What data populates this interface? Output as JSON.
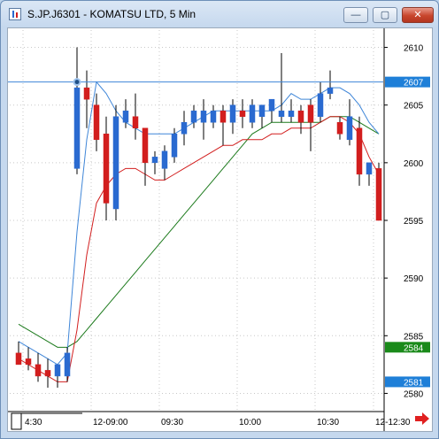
{
  "window": {
    "title": "S.JP.J6301 - KOMATSU LTD, 5 Min",
    "buttons": {
      "minimize": "—",
      "maximize": "▢",
      "close": "✕"
    }
  },
  "chart_data": {
    "type": "candlestick",
    "title": "S.JP.J6301 - KOMATSU LTD, 5 Min",
    "ylim": [
      2578.5,
      2611.5
    ],
    "y_ticks": [
      2580,
      2585,
      2590,
      2595,
      2600,
      2605,
      2610
    ],
    "x_tick_labels": [
      "4:30",
      "12-09:00",
      "09:30",
      "10:00",
      "10:30",
      "12-12:30"
    ],
    "grid": true,
    "colors": {
      "up": "#2a6ad0",
      "down": "#d21e1e",
      "price_line": "#3f86d8",
      "ma_blue": "#3f86d8",
      "ma_red": "#d21e1e",
      "ma_green": "#1c7a1c"
    },
    "horizontal_line": 2607,
    "price_tags": [
      {
        "label": "2607",
        "value": 2607,
        "color": "#1e7fd8"
      },
      {
        "label": "2584",
        "value": 2584,
        "color": "#1a8a1a"
      },
      {
        "label": "2581",
        "value": 2581,
        "color": "#1e7fd8"
      }
    ],
    "candles": [
      {
        "o": 2583.5,
        "h": 2584.5,
        "l": 2582.5,
        "c": 2582.5
      },
      {
        "o": 2583.0,
        "h": 2584.0,
        "l": 2582.0,
        "c": 2582.5
      },
      {
        "o": 2582.5,
        "h": 2583.5,
        "l": 2581.0,
        "c": 2581.5
      },
      {
        "o": 2582.0,
        "h": 2583.0,
        "l": 2580.5,
        "c": 2581.5
      },
      {
        "o": 2581.5,
        "h": 2582.5,
        "l": 2580.5,
        "c": 2582.5
      },
      {
        "o": 2581.5,
        "h": 2584.0,
        "l": 2581.0,
        "c": 2583.5
      },
      {
        "o": 2599.5,
        "h": 2610.0,
        "l": 2599.0,
        "c": 2606.5
      },
      {
        "o": 2606.5,
        "h": 2608.0,
        "l": 2603.0,
        "c": 2605.5
      },
      {
        "o": 2605.0,
        "h": 2606.0,
        "l": 2601.0,
        "c": 2602.0
      },
      {
        "o": 2602.5,
        "h": 2604.0,
        "l": 2595.0,
        "c": 2596.5
      },
      {
        "o": 2596.0,
        "h": 2605.0,
        "l": 2595.0,
        "c": 2604.0
      },
      {
        "o": 2603.5,
        "h": 2605.5,
        "l": 2603.0,
        "c": 2604.5
      },
      {
        "o": 2604.0,
        "h": 2606.0,
        "l": 2602.0,
        "c": 2603.0
      },
      {
        "o": 2603.0,
        "h": 2603.0,
        "l": 2598.0,
        "c": 2600.0
      },
      {
        "o": 2600.0,
        "h": 2601.0,
        "l": 2599.0,
        "c": 2600.5
      },
      {
        "o": 2599.5,
        "h": 2601.5,
        "l": 2598.5,
        "c": 2601.0
      },
      {
        "o": 2600.5,
        "h": 2603.0,
        "l": 2600.0,
        "c": 2602.5
      },
      {
        "o": 2602.5,
        "h": 2604.5,
        "l": 2601.5,
        "c": 2603.5
      },
      {
        "o": 2603.5,
        "h": 2605.0,
        "l": 2603.0,
        "c": 2604.5
      },
      {
        "o": 2603.5,
        "h": 2605.5,
        "l": 2602.0,
        "c": 2604.5
      },
      {
        "o": 2603.5,
        "h": 2605.0,
        "l": 2603.0,
        "c": 2604.5
      },
      {
        "o": 2604.5,
        "h": 2605.0,
        "l": 2601.5,
        "c": 2603.5
      },
      {
        "o": 2603.5,
        "h": 2605.5,
        "l": 2602.5,
        "c": 2605.0
      },
      {
        "o": 2604.5,
        "h": 2605.5,
        "l": 2603.0,
        "c": 2604.0
      },
      {
        "o": 2603.5,
        "h": 2605.5,
        "l": 2603.0,
        "c": 2605.0
      },
      {
        "o": 2604.0,
        "h": 2605.0,
        "l": 2603.0,
        "c": 2605.0
      },
      {
        "o": 2604.5,
        "h": 2605.5,
        "l": 2603.5,
        "c": 2605.5
      },
      {
        "o": 2604.0,
        "h": 2609.5,
        "l": 2603.5,
        "c": 2604.5
      },
      {
        "o": 2604.0,
        "h": 2605.5,
        "l": 2603.5,
        "c": 2604.5
      },
      {
        "o": 2604.5,
        "h": 2605.0,
        "l": 2602.5,
        "c": 2603.5
      },
      {
        "o": 2605.0,
        "h": 2605.5,
        "l": 2601.0,
        "c": 2603.5
      },
      {
        "o": 2604.0,
        "h": 2607.0,
        "l": 2603.5,
        "c": 2606.0
      },
      {
        "o": 2606.0,
        "h": 2608.0,
        "l": 2605.5,
        "c": 2606.5
      },
      {
        "o": 2603.5,
        "h": 2604.0,
        "l": 2602.0,
        "c": 2602.5
      },
      {
        "o": 2602.0,
        "h": 2605.5,
        "l": 2601.5,
        "c": 2604.0
      },
      {
        "o": 2603.0,
        "h": 2604.0,
        "l": 2598.0,
        "c": 2599.0
      },
      {
        "o": 2599.0,
        "h": 2600.0,
        "l": 2598.0,
        "c": 2600.0
      },
      {
        "o": 2599.5,
        "h": 2600.0,
        "l": 2595.0,
        "c": 2595.0
      }
    ],
    "ma_blue": [
      2584.5,
      2584.0,
      2583.5,
      2583.0,
      2582.5,
      2583.5,
      2594.0,
      2602.0,
      2607.0,
      2606.0,
      2604.5,
      2603.5,
      2603.0,
      2602.5,
      2602.5,
      2602.5,
      2602.5,
      2603.0,
      2603.5,
      2604.0,
      2604.5,
      2604.5,
      2604.5,
      2604.5,
      2604.5,
      2604.5,
      2604.5,
      2605.0,
      2606.0,
      2605.5,
      2605.5,
      2606.0,
      2606.5,
      2606.5,
      2606.0,
      2605.0,
      2603.5,
      2602.5
    ],
    "ma_red": [
      2583.0,
      2582.5,
      2582.0,
      2581.5,
      2581.0,
      2581.0,
      2585.5,
      2592.0,
      2596.5,
      2598.0,
      2599.0,
      2599.5,
      2599.5,
      2599.0,
      2598.5,
      2598.5,
      2599.0,
      2599.5,
      2600.0,
      2600.5,
      2601.0,
      2601.5,
      2601.5,
      2602.0,
      2602.0,
      2602.0,
      2602.5,
      2602.5,
      2603.0,
      2603.0,
      2603.0,
      2603.5,
      2604.0,
      2604.0,
      2603.5,
      2602.5,
      2600.5,
      2599.0
    ],
    "ma_green": [
      2586.0,
      2585.5,
      2585.0,
      2584.5,
      2584.0,
      2584.0,
      2584.5,
      2585.5,
      2586.5,
      2587.5,
      2588.5,
      2589.5,
      2590.5,
      2591.5,
      2592.5,
      2593.5,
      2594.5,
      2595.5,
      2596.5,
      2597.5,
      2598.5,
      2599.5,
      2600.5,
      2601.5,
      2602.5,
      2603.0,
      2603.5,
      2603.5,
      2603.5,
      2603.5,
      2603.5,
      2603.5,
      2604.0,
      2604.0,
      2604.0,
      2603.5,
      2603.0,
      2602.5
    ]
  }
}
